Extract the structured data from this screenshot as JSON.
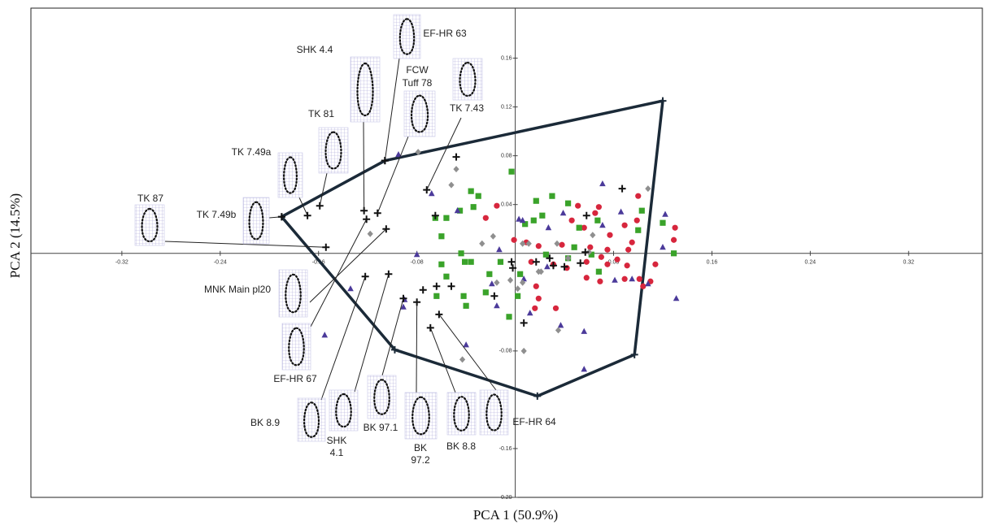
{
  "chart_data": {
    "type": "scatter",
    "xlabel": "PCA 1 (50.9%)",
    "ylabel": "PCA 2 (14.5%)",
    "xlim": [
      -0.394,
      0.38
    ],
    "ylim": [
      -0.2,
      0.201
    ],
    "xticks": [
      -0.32,
      -0.24,
      -0.16,
      -0.08,
      0.08,
      0.16,
      0.24,
      0.32
    ],
    "yticks": [
      {
        "value": -0.2,
        "label": "-0.20"
      },
      -0.16,
      -0.08,
      0.04,
      0.08,
      0.12,
      0.16
    ],
    "series": [
      {
        "marker": "circle",
        "color": "#d7263d",
        "x": [
          -0.024,
          -0.015,
          -0.001,
          0.009,
          0.013,
          0.019,
          0.017,
          0.019,
          0.016,
          0.031,
          0.033,
          0.038,
          0.042,
          0.046,
          0.051,
          0.056,
          0.058,
          0.058,
          0.061,
          0.065,
          0.068,
          0.069,
          0.07,
          0.075,
          0.077,
          0.075,
          0.083,
          0.089,
          0.089,
          0.091,
          0.092,
          0.095,
          0.099,
          0.1,
          0.101,
          0.104,
          0.11,
          0.114,
          0.129,
          0.13
        ],
        "values": [
          0.029,
          0.039,
          0.011,
          0.009,
          -0.007,
          0.006,
          -0.027,
          -0.037,
          -0.045,
          -0.009,
          -0.045,
          0.007,
          -0.012,
          0.027,
          0.039,
          0.021,
          -0.007,
          -0.02,
          0.005,
          0.033,
          0.038,
          -0.023,
          -0.003,
          0.003,
          0.015,
          -0.009,
          -0.005,
          0.023,
          -0.021,
          -0.01,
          0.003,
          0.009,
          0.027,
          0.047,
          -0.021,
          -0.027,
          -0.023,
          -0.009,
          0.011,
          0.021
        ]
      },
      {
        "marker": "square",
        "color": "#3aa32a",
        "x": [
          -0.003,
          -0.036,
          -0.034,
          -0.045,
          -0.056,
          -0.065,
          -0.06,
          -0.044,
          -0.06,
          -0.041,
          -0.036,
          -0.021,
          -0.012,
          -0.024,
          -0.042,
          -0.04,
          -0.064,
          -0.056,
          -0.005,
          0.002,
          0.004,
          0.015,
          0.008,
          0.017,
          0.03,
          0.022,
          0.043,
          0.048,
          0.052,
          0.043,
          0.062,
          0.068,
          0.067,
          0.103,
          0.1,
          0.12,
          0.129,
          0.025,
          -0.03
        ],
        "values": [
          0.067,
          0.051,
          0.038,
          0.035,
          0.029,
          0.029,
          0.014,
          0.0,
          -0.009,
          -0.007,
          -0.007,
          -0.017,
          -0.007,
          -0.032,
          -0.035,
          -0.043,
          -0.035,
          -0.019,
          -0.052,
          -0.035,
          -0.017,
          0.027,
          0.024,
          0.043,
          0.047,
          0.031,
          0.041,
          0.005,
          0.021,
          -0.004,
          -0.001,
          -0.015,
          0.027,
          0.035,
          0.019,
          0.025,
          0.0,
          -0.001,
          0.047
        ]
      },
      {
        "marker": "triangle",
        "color": "#4b3a9a",
        "x": [
          -0.095,
          -0.068,
          -0.047,
          -0.08,
          -0.134,
          -0.155,
          -0.09,
          -0.091,
          -0.04,
          -0.019,
          -0.013,
          0.003,
          0.006,
          0.027,
          0.026,
          0.037,
          0.039,
          0.056,
          0.056,
          0.071,
          0.071,
          0.081,
          0.095,
          0.108,
          0.12,
          0.122,
          0.131,
          0.086,
          0.007,
          -0.015,
          0.012
        ],
        "values": [
          0.081,
          0.049,
          0.035,
          -0.001,
          -0.029,
          -0.067,
          -0.038,
          -0.044,
          -0.075,
          -0.025,
          0.003,
          0.028,
          0.027,
          0.021,
          -0.011,
          -0.059,
          0.033,
          -0.064,
          -0.095,
          0.057,
          0.023,
          -0.022,
          -0.021,
          -0.025,
          0.005,
          0.032,
          -0.037,
          0.034,
          -0.021,
          -0.043,
          -0.049
        ]
      },
      {
        "marker": "diamond",
        "color": "#8f8f8f",
        "x": [
          -0.079,
          -0.048,
          -0.052,
          -0.118,
          -0.027,
          -0.018,
          0.006,
          -0.015,
          0.006,
          -0.004,
          0.002,
          0.019,
          0.011,
          0.034,
          0.035,
          0.007,
          -0.043,
          0.043,
          0.063,
          0.108,
          0.06,
          0.021
        ],
        "values": [
          0.083,
          0.069,
          0.056,
          0.016,
          0.008,
          0.014,
          0.008,
          -0.024,
          -0.024,
          -0.022,
          -0.029,
          -0.015,
          0.008,
          0.008,
          -0.063,
          -0.08,
          -0.087,
          -0.004,
          0.015,
          0.053,
          0.001,
          -0.015
        ]
      },
      {
        "marker": "cross",
        "color": "#111111",
        "x": [
          -0.048,
          -0.065,
          -0.064,
          -0.075,
          -0.052,
          -0.017,
          -0.003,
          -0.002,
          0.028,
          0.031,
          0.057,
          0.053,
          0.058,
          0.087,
          0.007,
          0.017,
          0.04
        ],
        "values": [
          0.079,
          0.031,
          -0.027,
          -0.03,
          -0.027,
          -0.035,
          -0.007,
          -0.012,
          -0.004,
          -0.01,
          0.001,
          -0.008,
          0.031,
          0.053,
          -0.057,
          -0.007,
          -0.011
        ]
      }
    ],
    "hull": {
      "color": "#1b2a38",
      "x": [
        -0.19,
        -0.106,
        0.12,
        0.097,
        0.018,
        -0.098
      ],
      "values": [
        0.03,
        0.076,
        0.125,
        -0.083,
        -0.117,
        -0.079
      ]
    },
    "annotations": [
      {
        "label": [
          "TK 87"
        ],
        "x": -0.154,
        "y": 0.005
      },
      {
        "label": [
          "TK 7.49b"
        ],
        "x": -0.19,
        "y": 0.03
      },
      {
        "label": [
          "TK 7.49a"
        ],
        "x": -0.169,
        "y": 0.031
      },
      {
        "label": [
          "TK 81"
        ],
        "x": -0.159,
        "y": 0.039
      },
      {
        "label": [
          "SHK 4.4"
        ],
        "x": -0.123,
        "y": 0.035
      },
      {
        "label": [
          "EF-HR 63"
        ],
        "x": -0.106,
        "y": 0.076
      },
      {
        "label": [
          "FCW",
          "Tuff 78"
        ],
        "x": -0.112,
        "y": 0.033
      },
      {
        "label": [
          "TK 7.43"
        ],
        "x": -0.072,
        "y": 0.052
      },
      {
        "label": [
          "MNK Main pl20"
        ],
        "x": -0.105,
        "y": 0.02
      },
      {
        "label": [
          "EF-HR 67"
        ],
        "x": -0.121,
        "y": 0.028
      },
      {
        "label": [
          "BK 8.9"
        ],
        "x": -0.122,
        "y": -0.019
      },
      {
        "label": [
          "SHK",
          "4.1"
        ],
        "x": -0.103,
        "y": -0.017
      },
      {
        "label": [
          "BK 97.1"
        ],
        "x": -0.091,
        "y": -0.037
      },
      {
        "label": [
          "BK",
          "97.2"
        ],
        "x": -0.08,
        "y": -0.04
      },
      {
        "label": [
          "BK 8.8"
        ],
        "x": -0.069,
        "y": -0.061
      },
      {
        "label": [
          "EF-HR 64"
        ],
        "x": -0.062,
        "y": -0.05
      }
    ]
  }
}
